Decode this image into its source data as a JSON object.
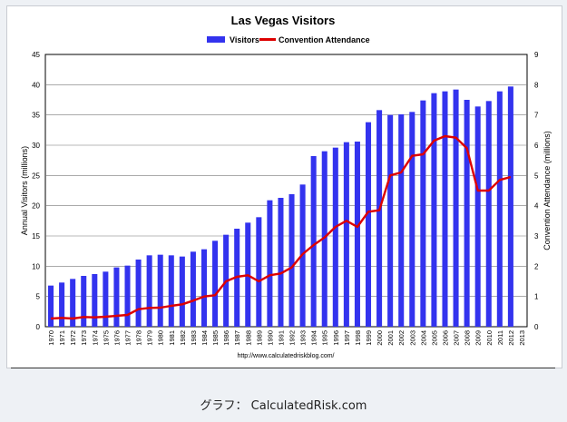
{
  "caption": "グラフ： CalculatedRisk.com",
  "chart_data": {
    "type": "bar+line",
    "title": "Las Vegas Visitors",
    "source": "http://www.calculatedriskblog.com/",
    "ylabel": "Annual Visitors (millions)",
    "y2label": "Convention Attendance (millions)",
    "ylim": [
      0,
      45
    ],
    "y2lim": [
      0,
      9
    ],
    "yticks": [
      "0",
      "5",
      "10",
      "15",
      "20",
      "25",
      "30",
      "35",
      "40",
      "45"
    ],
    "y2ticks": [
      "0",
      "1",
      "2",
      "3",
      "4",
      "5",
      "6",
      "7",
      "8",
      "9"
    ],
    "grid": true,
    "legend_position": "top",
    "categories": [
      "1970",
      "1971",
      "1972",
      "1973",
      "1974",
      "1975",
      "1976",
      "1977",
      "1978",
      "1979",
      "1980",
      "1981",
      "1982",
      "1983",
      "1984",
      "1985",
      "1986",
      "1987",
      "1988",
      "1989",
      "1990",
      "1991",
      "1992",
      "1993",
      "1994",
      "1995",
      "1996",
      "1997",
      "1998",
      "1999",
      "2000",
      "2001",
      "2002",
      "2003",
      "2004",
      "2005",
      "2006",
      "2007",
      "2008",
      "2009",
      "2010",
      "2011",
      "2012",
      "2013"
    ],
    "series": [
      {
        "name": "Visitors",
        "type": "bar",
        "axis": "left",
        "color": "#3333ee",
        "values": [
          6.8,
          7.3,
          7.9,
          8.4,
          8.7,
          9.1,
          9.8,
          10.1,
          11.1,
          11.8,
          11.9,
          11.8,
          11.6,
          12.4,
          12.8,
          14.2,
          15.2,
          16.2,
          17.2,
          18.1,
          20.9,
          21.3,
          21.9,
          23.5,
          28.2,
          29.0,
          29.6,
          30.5,
          30.6,
          33.8,
          35.8,
          35.0,
          35.1,
          35.5,
          37.4,
          38.6,
          38.9,
          39.2,
          37.5,
          36.4,
          37.3,
          38.9,
          39.7,
          null
        ]
      },
      {
        "name": "Convention Attendance",
        "type": "line",
        "axis": "right",
        "color": "#dd0000",
        "values": [
          0.27,
          0.29,
          0.27,
          0.32,
          0.31,
          0.33,
          0.36,
          0.39,
          0.58,
          0.62,
          0.63,
          0.69,
          0.74,
          0.86,
          1.0,
          1.04,
          1.5,
          1.65,
          1.7,
          1.5,
          1.7,
          1.76,
          1.96,
          2.4,
          2.7,
          2.95,
          3.3,
          3.5,
          3.3,
          3.8,
          3.85,
          5.0,
          5.1,
          5.65,
          5.7,
          6.15,
          6.3,
          6.25,
          5.9,
          4.5,
          4.5,
          4.85,
          4.95,
          null
        ]
      }
    ]
  }
}
